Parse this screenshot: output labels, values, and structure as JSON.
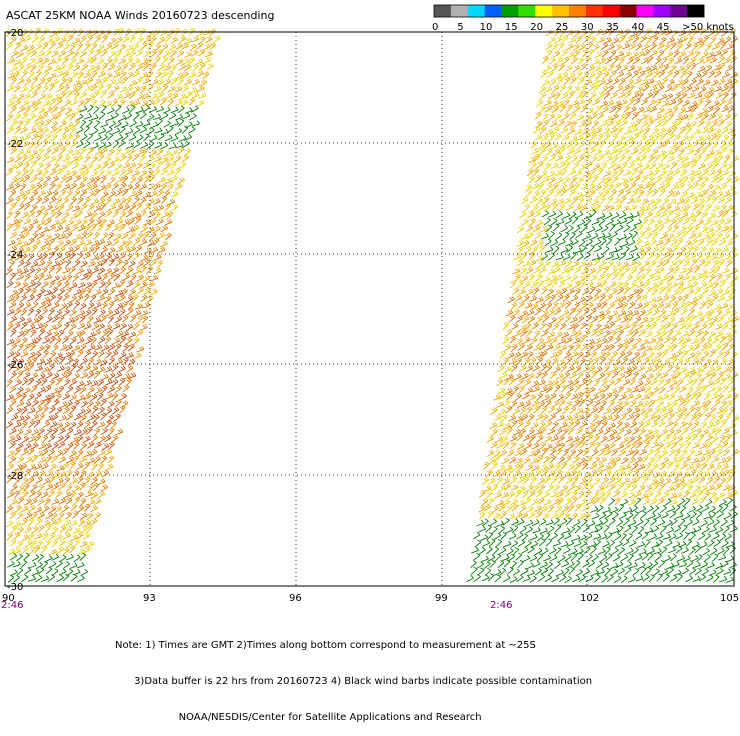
{
  "title": "ASCAT 25KM NOAA Winds 20160723 descending",
  "color_scale": {
    "segments": [
      "#555555",
      "#b0b0b0",
      "#00d8ff",
      "#0060ff",
      "#00a000",
      "#30e000",
      "#ffff00",
      "#ffc000",
      "#ff8000",
      "#ff3000",
      "#ff0000",
      "#8b0000",
      "#ff00ff",
      "#a000ff",
      "#700090",
      "#000000"
    ],
    "labels": [
      "0",
      "5",
      "10",
      "15",
      "20",
      "25",
      "30",
      "35",
      "40",
      "45",
      ">50 knots"
    ]
  },
  "lat_labels": [
    "-20",
    "-22",
    "-24",
    "-26",
    "-28",
    "-30"
  ],
  "lon_labels": [
    "90",
    "93",
    "96",
    "99",
    "102",
    "105"
  ],
  "time_labels": [
    "2:46",
    "2:46"
  ],
  "note_lines": [
    "Note: 1) Times are GMT 2)Times along bottom correspond to measurement at ~25S",
    "      3)Data buffer is 22 hrs from 20160723 4) Black wind barbs indicate possible contamination",
    "                    NOAA/NESDIS/Center for Satellite Applications and Research"
  ],
  "barb_colors": {
    "yellow": "#e8d000",
    "light_orange": "#f0a800",
    "orange": "#e07800",
    "dark_orange": "#c85010",
    "green": "#008000"
  }
}
